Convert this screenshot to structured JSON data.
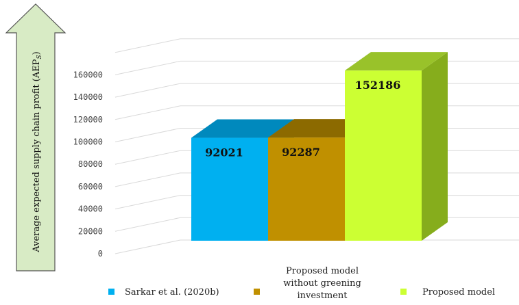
{
  "chart_data": {
    "type": "bar",
    "categories": [
      "Sarkar et al. (2020b)",
      "Proposed model without greening investment",
      "Proposed model"
    ],
    "values": [
      92021,
      92287,
      152186
    ],
    "data_labels": [
      "92021",
      "92287",
      "152186"
    ],
    "ylabel": "Average expected supply chain profit (AEP",
    "ylabel_sub": "S",
    "ylabel_close": ")",
    "ylim": [
      0,
      180000
    ],
    "yticks": [
      0,
      20000,
      40000,
      60000,
      80000,
      100000,
      120000,
      140000,
      160000
    ],
    "ytick_labels": [
      "0",
      "20000",
      "40000",
      "60000",
      "80000",
      "100000",
      "120000",
      "140000",
      "160000"
    ],
    "grid": true,
    "legend_position": "bottom",
    "legend": [
      {
        "lines": [
          "Sarkar et al. (2020b)"
        ]
      },
      {
        "lines": [
          "Proposed model",
          "without greening",
          "investment"
        ]
      },
      {
        "lines": [
          "Proposed model"
        ]
      }
    ],
    "colors": {
      "series": [
        {
          "front": "#00b0f0",
          "top": "#0089bd",
          "side": "#007fae"
        },
        {
          "front": "#c09000",
          "top": "#8c6a00",
          "side": "#7d5f00"
        },
        {
          "front": "#ccff33",
          "top": "#99c22a",
          "side": "#86ad1c"
        }
      ],
      "grid": "#d9d9d9",
      "arrow_fill": "#d8ebc5",
      "arrow_stroke": "#555555"
    }
  }
}
